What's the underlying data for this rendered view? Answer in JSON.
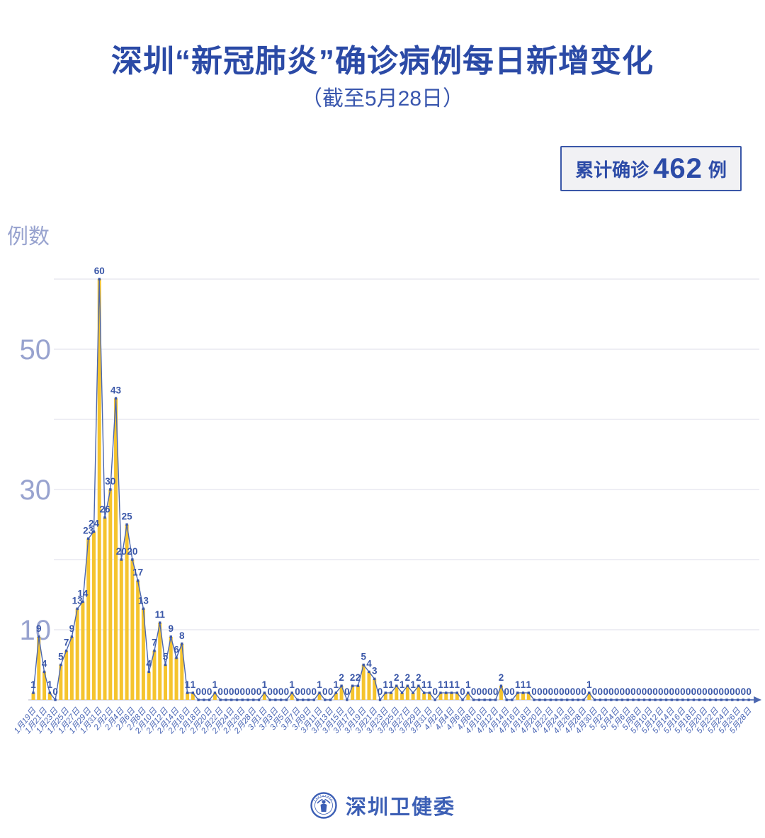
{
  "header": {
    "title": "深圳“新冠肺炎”确诊病例每日新增变化",
    "subtitle": "（截至5月28日）"
  },
  "badge": {
    "label": "累计确诊",
    "value": "462",
    "unit": "例"
  },
  "footer": {
    "source": "深圳卫健委"
  },
  "colors": {
    "title_blue": "#2b4aa6",
    "label_blue": "#3a57a8",
    "line_blue": "#4a66b0",
    "bar_gold": "#f5c42e",
    "axis_light": "#98a3cf",
    "grid_gray": "#e3e4ee",
    "baseline_gray": "#d8d9e2"
  },
  "chart_data": {
    "type": "line",
    "fill_style": "vertical-bar-area",
    "title": "深圳“新冠肺炎”确诊病例每日新增变化（截至5月28日）",
    "ylabel": "例数",
    "xlabel": "",
    "ylim": [
      0,
      62
    ],
    "grid": true,
    "y_gridlines": [
      10,
      20,
      30,
      40,
      50,
      60
    ],
    "y_tick_labels": [
      10,
      30,
      50
    ],
    "point_labels_shown": true,
    "x_tick_every": 2,
    "x_tick_labels": [
      "1月19日",
      "1月21日",
      "1月23日",
      "1月25日",
      "1月27日",
      "1月29日",
      "1月31日",
      "2月2日",
      "2月4日",
      "2月6日",
      "2月8日",
      "2月10日",
      "2月12日",
      "2月14日",
      "2月16日",
      "2月18日",
      "2月20日",
      "2月22日",
      "2月24日",
      "2月26日",
      "2月28日",
      "3月1日",
      "3月3日",
      "3月5日",
      "3月7日",
      "3月9日",
      "3月11日",
      "3月13日",
      "3月15日",
      "3月17日",
      "3月19日",
      "3月21日",
      "3月23日",
      "3月25日",
      "3月27日",
      "3月29日",
      "3月31日",
      "4月2日",
      "4月4日",
      "4月6日",
      "4月8日",
      "4月10日",
      "4月12日",
      "4月14日",
      "4月16日",
      "4月18日",
      "4月20日",
      "4月22日",
      "4月24日",
      "4月26日",
      "4月28日",
      "4月30日",
      "5月2日",
      "5月4日",
      "5月6日",
      "5月8日",
      "5月10日",
      "5月12日",
      "5月14日",
      "5月16日",
      "5月18日",
      "5月20日",
      "5月22日",
      "5月24日",
      "5月26日",
      "5月28日"
    ],
    "values": [
      1,
      9,
      4,
      1,
      0,
      5,
      7,
      9,
      13,
      14,
      23,
      24,
      60,
      26,
      30,
      43,
      20,
      25,
      20,
      17,
      13,
      4,
      7,
      11,
      5,
      9,
      6,
      8,
      1,
      1,
      0,
      0,
      0,
      1,
      0,
      0,
      0,
      0,
      0,
      0,
      0,
      0,
      1,
      0,
      0,
      0,
      0,
      1,
      0,
      0,
      0,
      0,
      1,
      0,
      0,
      1,
      2,
      0,
      2,
      2,
      5,
      4,
      3,
      0,
      1,
      1,
      2,
      1,
      2,
      1,
      2,
      1,
      1,
      0,
      1,
      1,
      1,
      1,
      0,
      1,
      0,
      0,
      0,
      0,
      0,
      2,
      0,
      0,
      1,
      1,
      1,
      0,
      0,
      0,
      0,
      0,
      0,
      0,
      0,
      0,
      0,
      1,
      0,
      0,
      0,
      0,
      0,
      0,
      0,
      0,
      0,
      0,
      0,
      0,
      0,
      0,
      0,
      0,
      0,
      0,
      0,
      0,
      0,
      0,
      0,
      0,
      0,
      0,
      0,
      0,
      0
    ],
    "total": 462
  }
}
